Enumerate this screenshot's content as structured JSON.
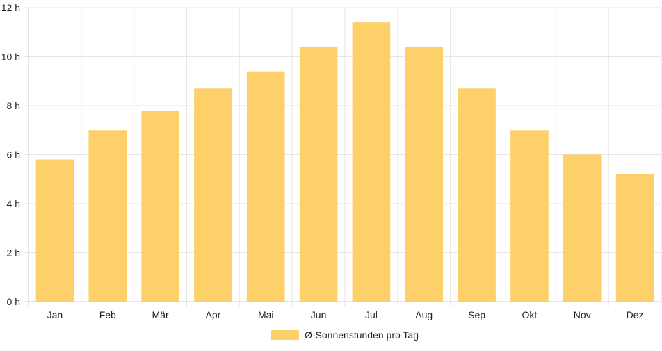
{
  "chart_data": {
    "type": "bar",
    "categories": [
      "Jan",
      "Feb",
      "Mär",
      "Apr",
      "Mai",
      "Jun",
      "Jul",
      "Aug",
      "Sep",
      "Okt",
      "Nov",
      "Dez"
    ],
    "series": [
      {
        "name": "Ø-Sonnenstunden pro Tag",
        "values": [
          5.8,
          7.0,
          7.8,
          8.7,
          9.4,
          10.4,
          11.4,
          10.4,
          8.7,
          7.0,
          6.0,
          5.2
        ],
        "color": "#fdd06a"
      }
    ],
    "ylim": [
      0,
      12
    ],
    "yticks": [
      "0 h",
      "2 h",
      "4 h",
      "6 h",
      "8 h",
      "10 h",
      "12 h"
    ],
    "grid": true,
    "legend_position": "bottom"
  }
}
